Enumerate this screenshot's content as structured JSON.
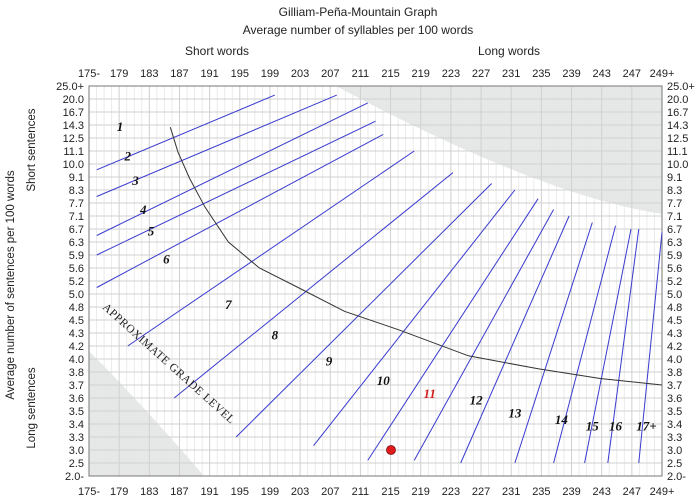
{
  "chart_data": {
    "type": "line",
    "title": "Gilliam-Peña-Mountain Graph",
    "subtitle": "Average number of syllables per 100 words",
    "top_region_labels": {
      "left": "Short words",
      "right": "Long words"
    },
    "left_axis_title": "Average number of sentences per 100 words",
    "left_region_labels": {
      "top": "Short sentences",
      "bottom": "Long sentences"
    },
    "x_ticks": [
      "175-",
      "179",
      "183",
      "187",
      "191",
      "195",
      "199",
      "203",
      "207",
      "211",
      "215",
      "219",
      "223",
      "227",
      "231",
      "235",
      "239",
      "243",
      "247",
      "249+"
    ],
    "x_range": [
      175,
      249
    ],
    "y_ticks": [
      "25.0+",
      "20.0",
      "16.7",
      "14.3",
      "12.5",
      "11.1",
      "10.0",
      "9.1",
      "8.3",
      "7.7",
      "7.1",
      "6.7",
      "6.3",
      "5.9",
      "5.6",
      "5.2",
      "5.0",
      "4.8",
      "4.5",
      "4.3",
      "4.2",
      "4.0",
      "3.8",
      "3.7",
      "3.6",
      "3.5",
      "3.4",
      "3.3",
      "3.0",
      "2.5",
      "2.0-"
    ],
    "y_scale": "categorical rows (non-linear)",
    "grid": true,
    "grade_lines": [
      {
        "p1": [
          176,
          9.6
        ],
        "p2": [
          199,
          21.5
        ]
      },
      {
        "p1": [
          176,
          8.0
        ],
        "p2": [
          207,
          21.5
        ]
      },
      {
        "p1": [
          176,
          6.5
        ],
        "p2": [
          211,
          19.0
        ]
      },
      {
        "p1": [
          176,
          5.9
        ],
        "p2": [
          212,
          15.0
        ]
      },
      {
        "p1": [
          176,
          5.1
        ],
        "p2": [
          213,
          13.0
        ]
      },
      {
        "p1": [
          180,
          4.2
        ],
        "p2": [
          217,
          11.1
        ]
      },
      {
        "p1": [
          186,
          3.6
        ],
        "p2": [
          222,
          9.4
        ]
      },
      {
        "p1": [
          194,
          3.3
        ],
        "p2": [
          227,
          8.7
        ]
      },
      {
        "p1": [
          204,
          3.1
        ],
        "p2": [
          230,
          8.3
        ]
      },
      {
        "p1": [
          211,
          2.6
        ],
        "p2": [
          233,
          7.9
        ]
      },
      {
        "p1": [
          217,
          2.6
        ],
        "p2": [
          235,
          7.4
        ]
      },
      {
        "p1": [
          223,
          2.5
        ],
        "p2": [
          237,
          7.1
        ]
      },
      {
        "p1": [
          230,
          2.5
        ],
        "p2": [
          240,
          6.9
        ]
      },
      {
        "p1": [
          235,
          2.5
        ],
        "p2": [
          243,
          6.8
        ]
      },
      {
        "p1": [
          239,
          2.5
        ],
        "p2": [
          245,
          6.7
        ]
      },
      {
        "p1": [
          242,
          2.5
        ],
        "p2": [
          246,
          6.7
        ]
      },
      {
        "p1": [
          246,
          2.5
        ],
        "p2": [
          249,
          6.6
        ]
      }
    ],
    "grade_labels": [
      {
        "text": "1",
        "at": [
          179,
          13.5
        ],
        "color": "#111111"
      },
      {
        "text": "2",
        "at": [
          180,
          10.3
        ],
        "color": "#111111"
      },
      {
        "text": "3",
        "at": [
          181,
          8.6
        ],
        "color": "#111111"
      },
      {
        "text": "4",
        "at": [
          182,
          7.2
        ],
        "color": "#111111"
      },
      {
        "text": "5",
        "at": [
          183,
          6.5
        ],
        "color": "#111111"
      },
      {
        "text": "6",
        "at": [
          185,
          5.7
        ],
        "color": "#111111"
      },
      {
        "text": "7",
        "at": [
          193,
          4.75
        ],
        "color": "#111111"
      },
      {
        "text": "8",
        "at": [
          199,
          4.25
        ],
        "color": "#111111"
      },
      {
        "text": "9",
        "at": [
          206,
          3.9
        ],
        "color": "#111111"
      },
      {
        "text": "10",
        "at": [
          213,
          3.7
        ],
        "color": "#111111"
      },
      {
        "text": "11",
        "at": [
          219,
          3.6
        ],
        "color": "#d42020"
      },
      {
        "text": "12",
        "at": [
          225,
          3.55
        ],
        "color": "#111111"
      },
      {
        "text": "13",
        "at": [
          230,
          3.45
        ],
        "color": "#111111"
      },
      {
        "text": "14",
        "at": [
          236,
          3.4
        ],
        "color": "#111111"
      },
      {
        "text": "15",
        "at": [
          240,
          3.35
        ],
        "color": "#111111"
      },
      {
        "text": "16",
        "at": [
          243,
          3.35
        ],
        "color": "#111111"
      },
      {
        "text": "17+",
        "at": [
          247,
          3.35
        ],
        "color": "#111111"
      }
    ],
    "curve_label": "APPROXIMATE GRADE LEVEL",
    "divider_curve": [
      [
        185.5,
        14.0
      ],
      [
        186.5,
        11.0
      ],
      [
        188,
        9.0
      ],
      [
        190,
        7.5
      ],
      [
        193,
        6.3
      ],
      [
        197,
        5.6
      ],
      [
        202,
        5.1
      ],
      [
        208,
        4.7
      ],
      [
        215,
        4.35
      ],
      [
        224,
        4.05
      ],
      [
        233,
        3.85
      ],
      [
        241,
        3.75
      ],
      [
        249,
        3.7
      ]
    ],
    "point": {
      "x": 214,
      "y": 3.0,
      "color": "#e01b1b"
    },
    "colors": {
      "grade_line": "#3a3ad0",
      "curve": "#333333",
      "grid": "#d0d0d0",
      "invalid_region": "#e6e8e8"
    }
  }
}
